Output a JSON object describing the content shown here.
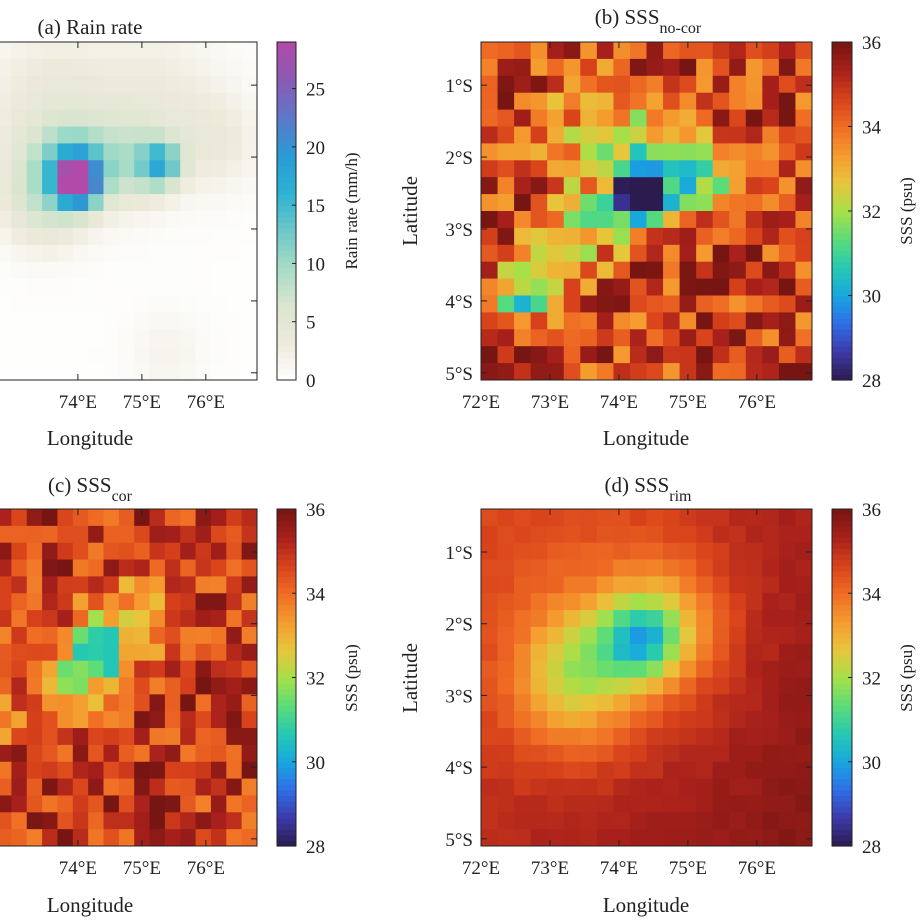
{
  "figure": {
    "colors": {
      "rain_colormap": [
        "#ffffff",
        "#eeeadb",
        "#d9e5cf",
        "#a6dcc7",
        "#6cc7c8",
        "#2cb2d2",
        "#2a9ad6",
        "#5d78c8",
        "#8a5ab4",
        "#b14aa8"
      ],
      "sss_colormap": [
        "#2b1b4e",
        "#3d39a8",
        "#2f6de6",
        "#18a6df",
        "#25c9b2",
        "#5bdc79",
        "#a7e048",
        "#e8c53b",
        "#f59b2f",
        "#ef6c24",
        "#d8421b",
        "#a8201b",
        "#761512"
      ],
      "axis": "#222222"
    }
  },
  "chart_data": [
    {
      "id": "a",
      "type": "heatmap",
      "title": "(a) Rain rate",
      "xlabel": "Longitude",
      "xticks": [
        "74°E",
        "75°E",
        "76°E"
      ],
      "xtick_values": [
        74,
        75,
        76
      ],
      "ylabel": "",
      "yticks": [],
      "colorbar": {
        "label": "Rain rate (mm/h)",
        "range": [
          0,
          29
        ],
        "ticks": [
          "0",
          "5",
          "10",
          "15",
          "20",
          "25"
        ],
        "tick_values": [
          0,
          5,
          10,
          15,
          20,
          25
        ]
      },
      "x_range": [
        72,
        76.8
      ],
      "y_range": [
        -5.1,
        -0.4
      ],
      "grid": {
        "cols": 20,
        "rows": 20
      },
      "field": {
        "kind": "rain",
        "base": 0.2,
        "blobs": [
          {
            "lon": 74.0,
            "lat": -2.35,
            "amp": 26,
            "s": 0.22
          },
          {
            "lon": 73.95,
            "lat": -2.1,
            "amp": 10,
            "s": 0.35
          },
          {
            "lon": 75.3,
            "lat": -2.1,
            "amp": 13,
            "s": 0.22
          },
          {
            "lon": 74.8,
            "lat": -2.1,
            "amp": 6,
            "s": 0.4
          },
          {
            "lon": 73.5,
            "lat": -2.5,
            "amp": 7,
            "s": 0.5
          },
          {
            "lon": 73.5,
            "lat": -1.3,
            "amp": 3.5,
            "s": 0.75
          },
          {
            "lon": 75.2,
            "lat": -1.3,
            "amp": 3,
            "s": 0.8
          },
          {
            "lon": 76.2,
            "lat": -1.8,
            "amp": 2.5,
            "s": 0.45
          },
          {
            "lon": 75.4,
            "lat": -4.7,
            "amp": 1.6,
            "s": 0.4
          }
        ]
      }
    },
    {
      "id": "b",
      "type": "heatmap",
      "title": "(b) SSS",
      "title_sub": "no-cor",
      "xlabel": "Longitude",
      "xticks": [
        "72°E",
        "73°E",
        "74°E",
        "75°E",
        "76°E"
      ],
      "xtick_values": [
        72,
        73,
        74,
        75,
        76
      ],
      "ylabel": "Latitude",
      "yticks": [
        "1°S",
        "2°S",
        "3°S",
        "4°S",
        "5°S"
      ],
      "ytick_values": [
        -1,
        -2,
        -3,
        -4,
        -5
      ],
      "colorbar": {
        "label": "SSS (psu)",
        "range": [
          28,
          36
        ],
        "ticks": [
          "28",
          "30",
          "32",
          "34",
          "36"
        ],
        "tick_values": [
          28,
          30,
          32,
          34,
          36
        ]
      },
      "x_range": [
        72,
        76.8
      ],
      "y_range": [
        -5.1,
        -0.4
      ],
      "grid": {
        "cols": 20,
        "rows": 20
      },
      "field": {
        "kind": "sss",
        "base": 34.8,
        "noise": 1.5,
        "seed": 11,
        "blobs": [
          {
            "lon": 74.25,
            "lat": -2.6,
            "amp": -6.2,
            "s": 0.22
          },
          {
            "lon": 74.65,
            "lat": -2.25,
            "amp": -3.4,
            "s": 0.38
          },
          {
            "lon": 74.3,
            "lat": -2.3,
            "amp": -2.2,
            "s": 0.6
          },
          {
            "lon": 73.3,
            "lat": -3.2,
            "amp": -2.8,
            "s": 0.35
          },
          {
            "lon": 72.6,
            "lat": -3.9,
            "amp": -3.4,
            "s": 0.35
          },
          {
            "lon": 73.6,
            "lat": -1.7,
            "amp": -1.8,
            "s": 0.5
          },
          {
            "lon": 75.6,
            "lat": -2.3,
            "amp": -2.0,
            "s": 0.35
          }
        ]
      }
    },
    {
      "id": "c",
      "type": "heatmap",
      "title": "(c) SSS",
      "title_sub": "cor",
      "xlabel": "Longitude",
      "xticks": [
        "74°E",
        "75°E",
        "76°E"
      ],
      "xtick_values": [
        74,
        75,
        76
      ],
      "ylabel": "",
      "yticks": [],
      "colorbar": {
        "label": "SSS (psu)",
        "range": [
          28,
          36
        ],
        "ticks": [
          "28",
          "30",
          "32",
          "34",
          "36"
        ],
        "tick_values": [
          28,
          30,
          32,
          34,
          36
        ]
      },
      "x_range": [
        72,
        76.8
      ],
      "y_range": [
        -5.1,
        -0.4
      ],
      "grid": {
        "cols": 20,
        "rows": 20
      },
      "field": {
        "kind": "sss",
        "base": 34.9,
        "noise": 1.2,
        "seed": 27,
        "blobs": [
          {
            "lon": 74.25,
            "lat": -2.45,
            "amp": -3.6,
            "s": 0.3
          },
          {
            "lon": 74.8,
            "lat": -2.0,
            "amp": -2.2,
            "s": 0.45
          },
          {
            "lon": 72.3,
            "lat": -3.1,
            "amp": -3.8,
            "s": 0.3
          },
          {
            "lon": 72.2,
            "lat": -3.6,
            "amp": -3.0,
            "s": 0.3
          },
          {
            "lon": 73.8,
            "lat": -2.9,
            "amp": -1.6,
            "s": 0.5
          }
        ]
      }
    },
    {
      "id": "d",
      "type": "heatmap",
      "title": "(d) SSS",
      "title_sub": "rim",
      "xlabel": "Longitude",
      "xticks": [
        "72°E",
        "73°E",
        "74°E",
        "75°E",
        "76°E"
      ],
      "xtick_values": [
        72,
        73,
        74,
        75,
        76
      ],
      "ylabel": "Latitude",
      "yticks": [
        "1°S",
        "2°S",
        "3°S",
        "4°S",
        "5°S"
      ],
      "ytick_values": [
        -1,
        -2,
        -3,
        -4,
        -5
      ],
      "colorbar": {
        "label": "SSS (psu)",
        "range": [
          28,
          36
        ],
        "ticks": [
          "28",
          "30",
          "32",
          "34",
          "36"
        ],
        "tick_values": [
          28,
          30,
          32,
          34,
          36
        ]
      },
      "x_range": [
        72,
        76.8
      ],
      "y_range": [
        -5.1,
        -0.4
      ],
      "grid": {
        "cols": 20,
        "rows": 20
      },
      "field": {
        "kind": "sss",
        "base": 35.2,
        "noise": 0.12,
        "seed": 5,
        "blobs": [
          {
            "lon": 74.3,
            "lat": -2.25,
            "amp": -2.8,
            "s": 0.38
          },
          {
            "lon": 74.7,
            "lat": -2.0,
            "amp": -1.4,
            "s": 0.55
          },
          {
            "lon": 73.4,
            "lat": -2.6,
            "amp": -1.6,
            "s": 0.55
          },
          {
            "lon": 74.0,
            "lat": -2.2,
            "amp": -1.3,
            "s": 1.1
          },
          {
            "lon": 73.2,
            "lat": -3.2,
            "amp": -0.8,
            "s": 0.6
          }
        ]
      }
    }
  ]
}
